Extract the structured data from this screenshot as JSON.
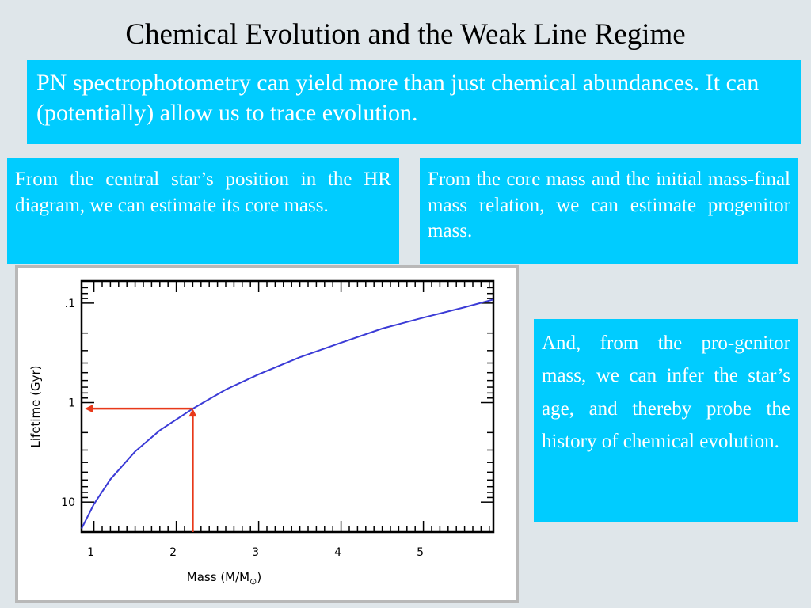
{
  "slide": {
    "title": "Chemical Evolution and the Weak Line Regime",
    "intro": "PN spectrophotometry can yield more than just chemical abundances.   It can (potentially) allow us to trace evolution.",
    "left_text": "From the central star’s position in the HR diagram, we can estimate its core mass.",
    "middle_text": "From the core mass and the initial mass-final mass relation, we can estimate progenitor mass.",
    "right_text": "And, from the pro-genitor mass, we can infer the star’s age, and thereby probe the history of chemical evolution."
  },
  "colors": {
    "box": "#00ccff",
    "curve": "#3b3bd6",
    "arrow": "#e8391a"
  },
  "chart_data": {
    "type": "line",
    "xlabel": "Mass  (M/M",
    "xlabel_sub": "⊙",
    "xlabel_close": ")",
    "ylabel": "Lifetime (Gyr)",
    "xlim": [
      0.85,
      5.85
    ],
    "ylim": [
      0.06,
      20
    ],
    "y_scale": "log",
    "y_inverted": true,
    "x_ticks": [
      1,
      2,
      3,
      4,
      5
    ],
    "x_tick_labels": [
      "1",
      "2",
      "3",
      "4",
      "5"
    ],
    "y_ticks": [
      0.1,
      1,
      10
    ],
    "y_tick_labels": [
      ".1",
      "1",
      "10"
    ],
    "series": [
      {
        "x": [
          0.85,
          1.0,
          1.2,
          1.5,
          1.8,
          2.2,
          2.6,
          3.0,
          3.5,
          4.0,
          4.5,
          5.0,
          5.5,
          5.85
        ],
        "y": [
          18.5,
          10.5,
          5.9,
          3.1,
          1.9,
          1.15,
          0.74,
          0.52,
          0.35,
          0.25,
          0.18,
          0.14,
          0.11,
          0.092
        ]
      }
    ],
    "annotations": [
      {
        "type": "arrow",
        "from": [
          2.2,
          20
        ],
        "to": [
          2.2,
          1.15
        ]
      },
      {
        "type": "arrow",
        "from": [
          2.2,
          1.15
        ],
        "to": [
          0.85,
          1.15
        ]
      }
    ]
  }
}
